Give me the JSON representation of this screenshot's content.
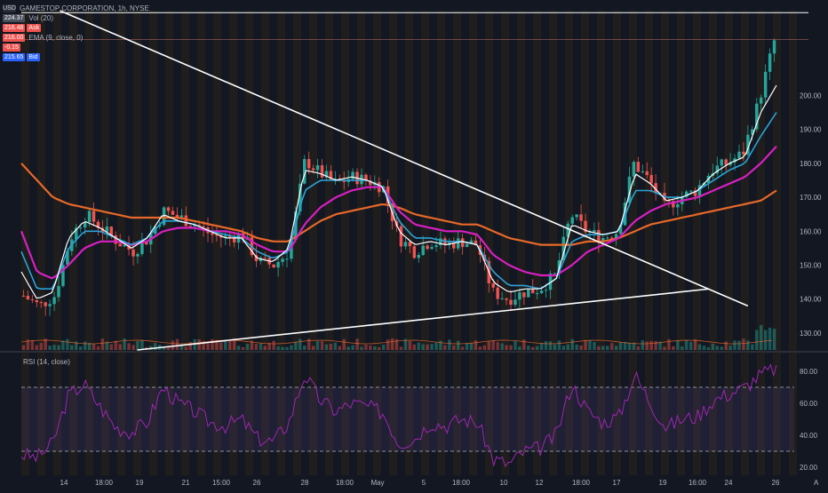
{
  "symbol": {
    "currency": "USD",
    "name": "GAMESTOP CORPORATION, 1h, NYSE",
    "last_price_box": "224.37"
  },
  "legend": {
    "vol": "Vol (20)",
    "ema": "EMA (9, close, 0)",
    "sell_price": "216.48",
    "sell_label": "Ask",
    "buy_price": "216.00",
    "spread": "-0.15",
    "bid_price": "215.65",
    "bid_label": "Bid"
  },
  "rsi": {
    "label": "RSI (14, close)"
  },
  "price_axis": [
    "200.00",
    "190.00",
    "180.00",
    "170.00",
    "160.00",
    "150.00",
    "140.00",
    "130.00"
  ],
  "rsi_axis": [
    "80.00",
    "60.00",
    "40.00",
    "20.00"
  ],
  "time_axis": [
    "14",
    "18:00",
    "19",
    "21",
    "15:00",
    "26",
    "28",
    "18:00",
    "May",
    "5",
    "18:00",
    "10",
    "12",
    "18:00",
    "17",
    "19",
    "16:00",
    "24",
    "26"
  ],
  "corner_label": "A",
  "colors": {
    "background": "#131722",
    "up": "#26a69a",
    "down": "#ef5350",
    "ema_white": "#ffffff",
    "ema_blue": "#2ba3d8",
    "ema_magenta": "#d81fc2",
    "ema_orange": "#e8682a",
    "rsi_line": "#9c27b0",
    "rsi_band": "#7e57c2",
    "session_band": "#2a2418",
    "trendline": "#ffffff"
  },
  "chart_data": {
    "type": "candlestick",
    "title": "GAMESTOP CORPORATION, 1h, NYSE",
    "ylim": [
      125,
      225
    ],
    "y_ticks": [
      130,
      140,
      150,
      160,
      170,
      180,
      190,
      200
    ],
    "close_path": [
      141,
      138,
      141,
      158,
      165,
      161,
      157,
      154,
      158,
      166,
      164,
      162,
      159,
      158,
      159,
      151,
      150,
      154,
      181,
      177,
      174,
      176,
      175,
      173,
      158,
      154,
      157,
      156,
      157,
      156,
      142,
      140,
      142,
      143,
      147,
      165,
      160,
      158,
      160,
      180,
      175,
      167,
      170,
      172,
      178,
      180,
      183,
      198,
      216
    ],
    "ema_white": [
      148,
      140,
      142,
      158,
      163,
      161,
      158,
      155,
      158,
      165,
      163,
      162,
      160,
      158,
      158,
      152,
      151,
      155,
      178,
      177,
      175,
      176,
      175,
      173,
      160,
      156,
      157,
      156,
      157,
      156,
      145,
      142,
      143,
      143,
      146,
      162,
      160,
      159,
      160,
      177,
      174,
      169,
      170,
      172,
      177,
      180,
      182,
      195,
      203
    ],
    "ema_blue": [
      154,
      143,
      143,
      155,
      160,
      160,
      158,
      156,
      158,
      163,
      163,
      162,
      160,
      159,
      158,
      154,
      152,
      154,
      172,
      175,
      175,
      175,
      175,
      173,
      163,
      158,
      158,
      157,
      157,
      156,
      148,
      144,
      144,
      143,
      146,
      157,
      159,
      159,
      160,
      172,
      172,
      170,
      170,
      172,
      175,
      178,
      180,
      188,
      195
    ],
    "ema_magenta": [
      160,
      148,
      146,
      150,
      155,
      157,
      157,
      156,
      157,
      160,
      161,
      161,
      160,
      160,
      159,
      156,
      154,
      154,
      162,
      167,
      170,
      172,
      173,
      173,
      166,
      162,
      161,
      160,
      160,
      159,
      153,
      150,
      148,
      147,
      147,
      150,
      154,
      156,
      158,
      163,
      166,
      168,
      169,
      170,
      172,
      174,
      176,
      180,
      185
    ],
    "ema_orange": [
      180,
      175,
      170,
      168,
      167,
      166,
      165,
      164,
      164,
      164,
      164,
      163,
      162,
      161,
      160,
      158,
      157,
      157,
      160,
      163,
      165,
      166,
      167,
      168,
      167,
      165,
      164,
      163,
      162,
      162,
      160,
      158,
      157,
      156,
      156,
      156,
      157,
      157,
      158,
      160,
      162,
      163,
      164,
      165,
      166,
      167,
      168,
      169,
      172
    ],
    "trendlines": [
      {
        "from": {
          "x_frac": 0.05,
          "y": 225
        },
        "to": {
          "x_frac": 0.94,
          "y": 138
        }
      },
      {
        "from": {
          "x_frac": 0.15,
          "y": 125
        },
        "to": {
          "x_frac": 0.89,
          "y": 143
        }
      }
    ],
    "resistance_lines": [
      224.4,
      216.5
    ],
    "rsi": {
      "ylim": [
        15,
        90
      ],
      "overbought": 70,
      "oversold": 30,
      "values": [
        28,
        26,
        35,
        65,
        72,
        58,
        45,
        42,
        48,
        70,
        60,
        55,
        48,
        46,
        50,
        38,
        36,
        48,
        78,
        62,
        55,
        60,
        58,
        54,
        35,
        38,
        48,
        46,
        50,
        48,
        25,
        22,
        30,
        32,
        40,
        72,
        55,
        48,
        52,
        78,
        60,
        45,
        50,
        52,
        62,
        66,
        70,
        78,
        82
      ]
    }
  }
}
